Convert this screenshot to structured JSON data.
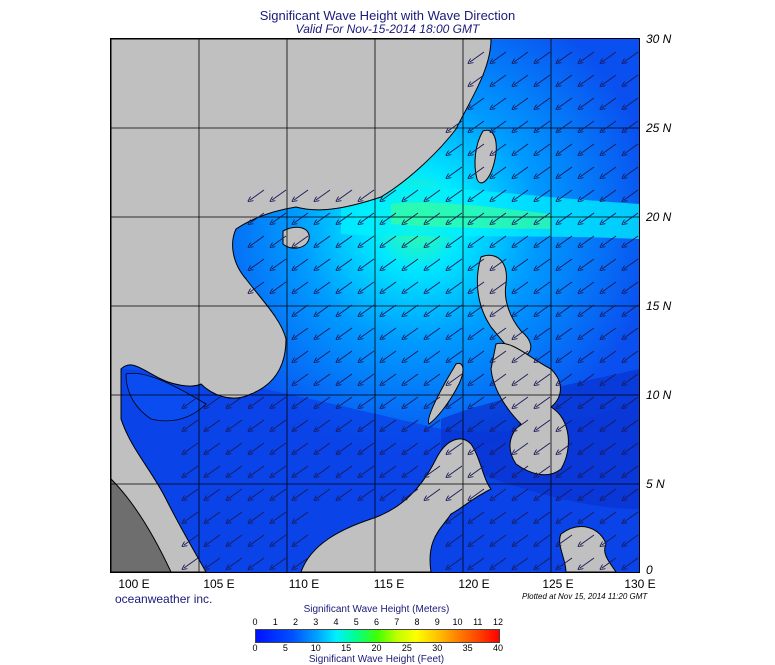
{
  "header": {
    "title": "Significant Wave Height with Wave Direction",
    "subtitle": "Valid For Nov-15-2014 18:00 GMT"
  },
  "axes": {
    "lat_labels": [
      "30 N",
      "25 N",
      "20 N",
      "15 N",
      "10 N",
      "5 N",
      "0"
    ],
    "lon_labels": [
      "100 E",
      "105 E",
      "110 E",
      "115 E",
      "120 E",
      "125 E",
      "130 E"
    ],
    "lat_range": [
      0,
      30
    ],
    "lon_range": [
      100,
      130
    ]
  },
  "footer": {
    "credit": "oceanweather inc.",
    "plotted": "Plotted at Nov 15, 2014 11:20 GMT"
  },
  "colorbar": {
    "meters_title": "Significant Wave Height (Meters)",
    "feet_title": "Significant Wave Height (Feet)",
    "meters_ticks": [
      "0",
      "1",
      "2",
      "3",
      "4",
      "5",
      "6",
      "7",
      "8",
      "9",
      "10",
      "11",
      "12"
    ],
    "feet_ticks": [
      "0",
      "5",
      "10",
      "15",
      "20",
      "25",
      "30",
      "35",
      "40"
    ]
  },
  "colors": {
    "land": "#c0c0c0",
    "deep_blue": "#0a3ee6",
    "cyan": "#00e6ff",
    "green_max": "#30ff80"
  },
  "wave_direction": "northeast (arrows pointing southwest)"
}
